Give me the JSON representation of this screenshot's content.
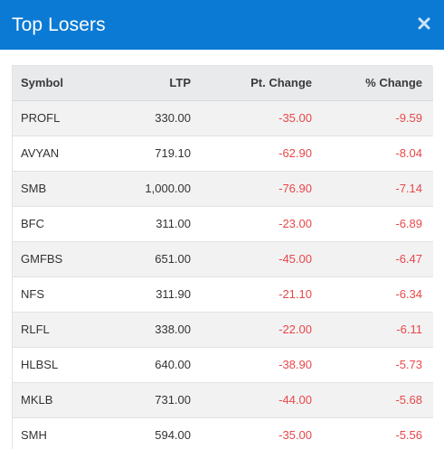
{
  "modal": {
    "title": "Top Losers",
    "close_label": "×"
  },
  "table": {
    "columns": [
      "Symbol",
      "LTP",
      "Pt. Change",
      "% Change"
    ],
    "rows": [
      {
        "symbol": "PROFL",
        "ltp": "330.00",
        "pt_change": "-35.00",
        "pct_change": "-9.59"
      },
      {
        "symbol": "AVYAN",
        "ltp": "719.10",
        "pt_change": "-62.90",
        "pct_change": "-8.04"
      },
      {
        "symbol": "SMB",
        "ltp": "1,000.00",
        "pt_change": "-76.90",
        "pct_change": "-7.14"
      },
      {
        "symbol": "BFC",
        "ltp": "311.00",
        "pt_change": "-23.00",
        "pct_change": "-6.89"
      },
      {
        "symbol": "GMFBS",
        "ltp": "651.00",
        "pt_change": "-45.00",
        "pct_change": "-6.47"
      },
      {
        "symbol": "NFS",
        "ltp": "311.90",
        "pt_change": "-21.10",
        "pct_change": "-6.34"
      },
      {
        "symbol": "RLFL",
        "ltp": "338.00",
        "pt_change": "-22.00",
        "pct_change": "-6.11"
      },
      {
        "symbol": "HLBSL",
        "ltp": "640.00",
        "pt_change": "-38.90",
        "pct_change": "-5.73"
      },
      {
        "symbol": "MKLB",
        "ltp": "731.00",
        "pt_change": "-44.00",
        "pct_change": "-5.68"
      },
      {
        "symbol": "SMH",
        "ltp": "594.00",
        "pt_change": "-35.00",
        "pct_change": "-5.56"
      }
    ]
  },
  "colors": {
    "header_bg": "#0a7ad4",
    "negative": "#e8474a"
  }
}
